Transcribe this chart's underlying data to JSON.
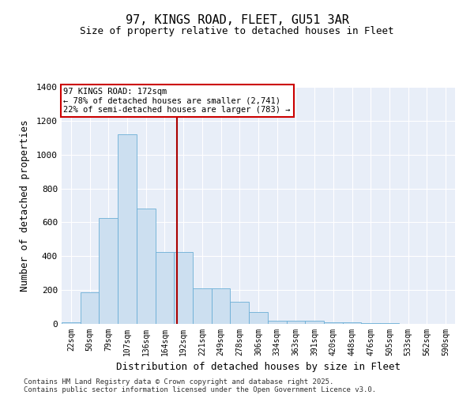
{
  "title_line1": "97, KINGS ROAD, FLEET, GU51 3AR",
  "title_line2": "Size of property relative to detached houses in Fleet",
  "xlabel": "Distribution of detached houses by size in Fleet",
  "ylabel": "Number of detached properties",
  "categories": [
    "22sqm",
    "50sqm",
    "79sqm",
    "107sqm",
    "136sqm",
    "164sqm",
    "192sqm",
    "221sqm",
    "249sqm",
    "278sqm",
    "306sqm",
    "334sqm",
    "363sqm",
    "391sqm",
    "420sqm",
    "448sqm",
    "476sqm",
    "505sqm",
    "533sqm",
    "562sqm",
    "590sqm"
  ],
  "values": [
    10,
    185,
    625,
    1120,
    680,
    425,
    425,
    210,
    210,
    130,
    70,
    20,
    20,
    20,
    10,
    8,
    5,
    3,
    2,
    1,
    0
  ],
  "bar_color": "#ccdff0",
  "bar_edge_color": "#6aaed6",
  "bg_color": "#e8eef8",
  "grid_color": "#ffffff",
  "vline_color": "#aa0000",
  "vline_x": 5.65,
  "annotation_text": "97 KINGS ROAD: 172sqm\n← 78% of detached houses are smaller (2,741)\n22% of semi-detached houses are larger (783) →",
  "annotation_box_color": "#cc0000",
  "ylim": [
    0,
    1400
  ],
  "yticks": [
    0,
    200,
    400,
    600,
    800,
    1000,
    1200,
    1400
  ],
  "footer_line1": "Contains HM Land Registry data © Crown copyright and database right 2025.",
  "footer_line2": "Contains public sector information licensed under the Open Government Licence v3.0."
}
